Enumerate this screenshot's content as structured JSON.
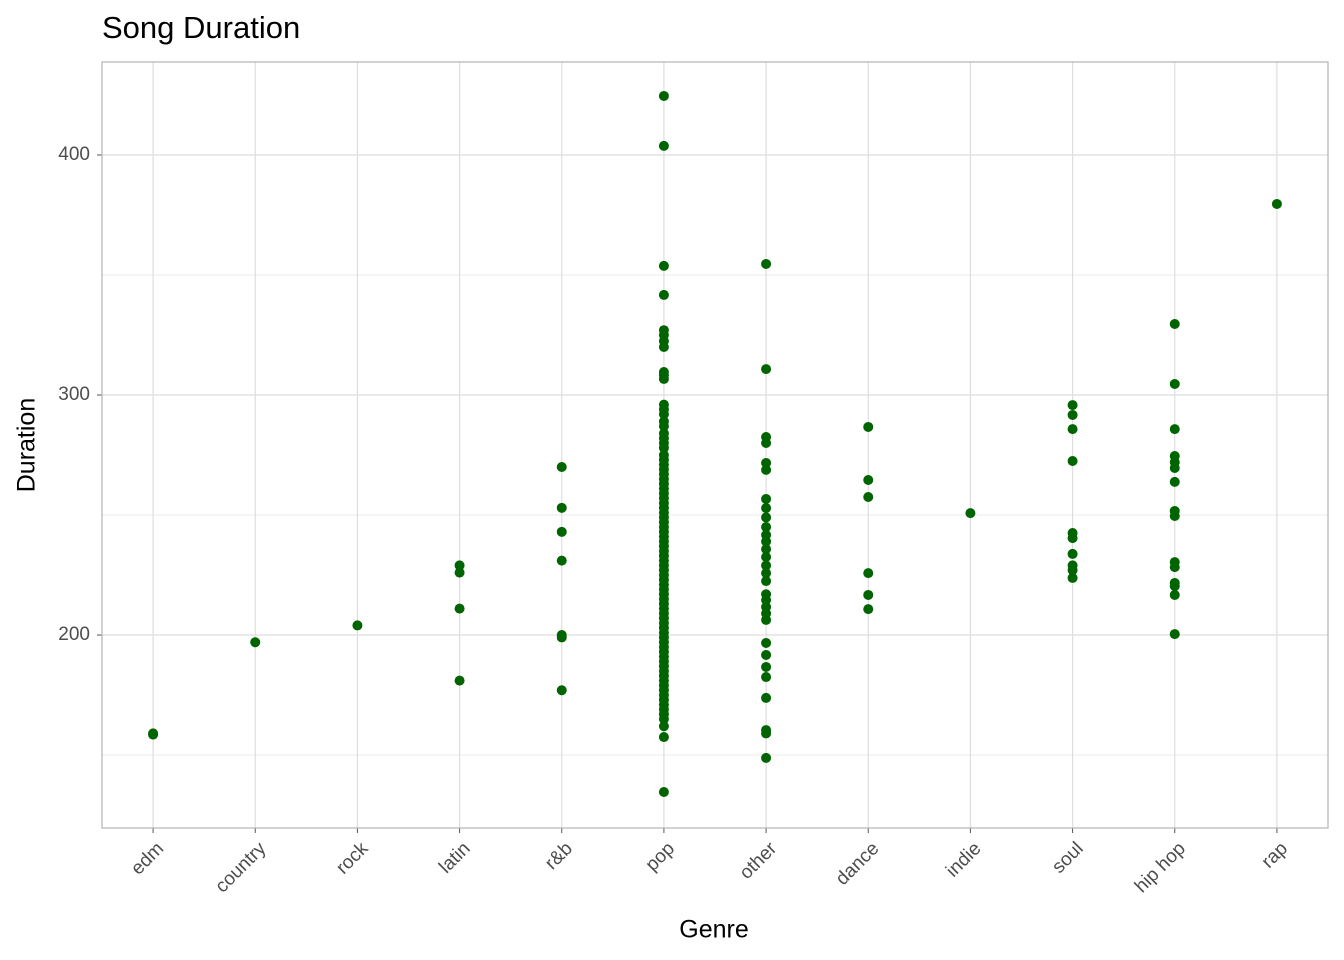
{
  "chart_data": {
    "type": "strip",
    "title": "Song Duration",
    "x_label": "Genre",
    "y_label": "Duration",
    "color": "#006400",
    "grid": true,
    "categories": [
      "edm",
      "country",
      "rock",
      "latin",
      "r&b",
      "pop",
      "other",
      "dance",
      "indie",
      "soul",
      "hip hop",
      "rap"
    ],
    "values": [
      [
        159,
        158.5
      ],
      [
        197
      ],
      [
        204
      ],
      [
        229,
        226,
        211,
        181
      ],
      [
        270,
        253,
        243,
        231,
        200,
        199,
        177
      ],
      [
        424.6,
        403.8,
        353.8,
        341.7,
        327,
        325,
        322.5,
        320,
        309.6,
        308.3,
        306.7,
        296,
        294,
        292,
        289,
        287,
        284,
        282,
        280,
        278,
        275,
        273,
        271,
        269,
        267,
        265,
        263,
        261,
        259,
        257,
        255,
        253,
        251,
        249,
        247,
        245,
        243,
        241,
        239,
        237,
        235,
        233,
        231,
        229,
        227,
        225,
        223,
        221,
        219,
        217,
        215,
        213,
        211,
        209,
        207,
        205,
        203,
        201,
        199,
        197,
        195,
        193,
        191,
        189,
        187,
        185,
        183,
        181,
        179,
        177,
        175,
        173,
        171,
        169,
        167,
        165,
        162,
        157.5,
        134.6
      ],
      [
        354.6,
        310.8,
        282.5,
        280,
        271.7,
        268.8,
        256.7,
        252.9,
        249,
        245,
        241.7,
        239,
        235.8,
        232.5,
        229,
        225.8,
        222.5,
        217,
        214.6,
        211.7,
        209,
        206.3,
        196.7,
        191.7,
        186.7,
        182.5,
        173.8,
        160.4,
        159,
        148.8
      ],
      [
        286.7,
        264.6,
        257.5,
        225.8,
        216.7,
        210.8
      ],
      [
        250.8
      ],
      [
        295.8,
        291.7,
        285.8,
        272.5,
        242.5,
        240.4,
        233.8,
        229,
        227,
        223.8
      ],
      [
        329.6,
        304.6,
        285.8,
        274.6,
        272,
        269.6,
        263.8,
        251.7,
        249.6,
        230.4,
        228.3,
        221.7,
        220.4,
        216.7,
        200.4
      ],
      [
        379.6
      ]
    ],
    "ylim": [
      119.6,
      438.75
    ],
    "yticks": [
      200,
      300,
      400
    ],
    "yminor": [
      150,
      250,
      350
    ]
  }
}
